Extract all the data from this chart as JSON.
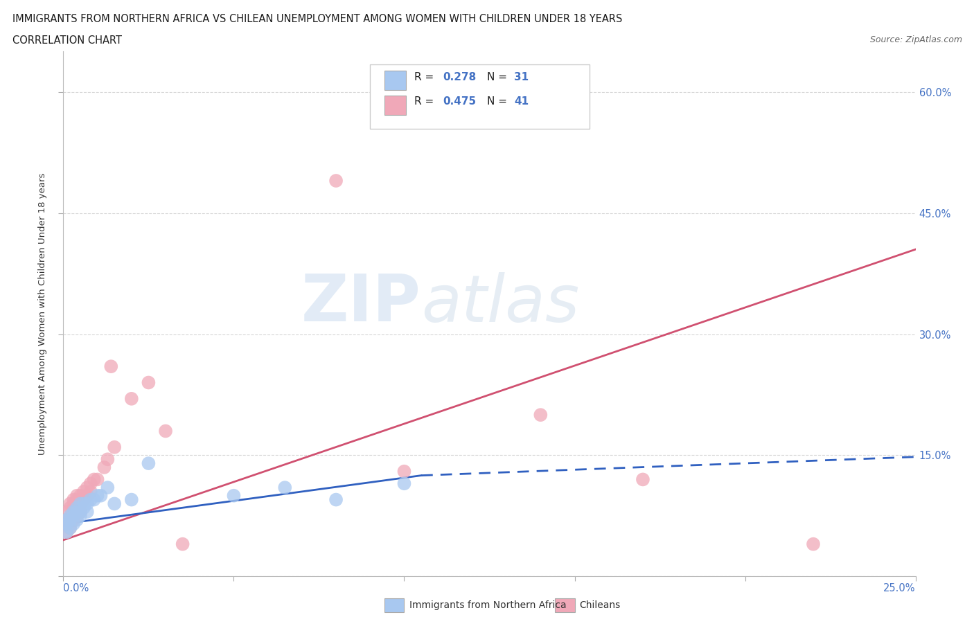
{
  "title": "IMMIGRANTS FROM NORTHERN AFRICA VS CHILEAN UNEMPLOYMENT AMONG WOMEN WITH CHILDREN UNDER 18 YEARS",
  "subtitle": "CORRELATION CHART",
  "source": "Source: ZipAtlas.com",
  "legend_label_blue": "Immigrants from Northern Africa",
  "legend_label_pink": "Chileans",
  "blue_color": "#a8c8f0",
  "pink_color": "#f0a8b8",
  "blue_line_color": "#3060c0",
  "pink_line_color": "#d05070",
  "watermark_zip": "ZIP",
  "watermark_atlas": "atlas",
  "blue_scatter_x": [
    0.001,
    0.001,
    0.001,
    0.002,
    0.002,
    0.002,
    0.003,
    0.003,
    0.003,
    0.004,
    0.004,
    0.004,
    0.005,
    0.005,
    0.005,
    0.006,
    0.006,
    0.007,
    0.007,
    0.008,
    0.009,
    0.01,
    0.011,
    0.013,
    0.015,
    0.02,
    0.025,
    0.05,
    0.065,
    0.08,
    0.1
  ],
  "blue_scatter_y": [
    0.055,
    0.065,
    0.07,
    0.06,
    0.07,
    0.075,
    0.065,
    0.075,
    0.08,
    0.07,
    0.08,
    0.085,
    0.075,
    0.08,
    0.09,
    0.085,
    0.09,
    0.08,
    0.09,
    0.095,
    0.095,
    0.1,
    0.1,
    0.11,
    0.09,
    0.095,
    0.14,
    0.1,
    0.11,
    0.095,
    0.115
  ],
  "pink_scatter_x": [
    0.001,
    0.001,
    0.001,
    0.001,
    0.002,
    0.002,
    0.002,
    0.002,
    0.002,
    0.003,
    0.003,
    0.003,
    0.003,
    0.004,
    0.004,
    0.004,
    0.004,
    0.005,
    0.005,
    0.005,
    0.006,
    0.006,
    0.007,
    0.007,
    0.008,
    0.008,
    0.009,
    0.01,
    0.012,
    0.013,
    0.014,
    0.015,
    0.02,
    0.025,
    0.03,
    0.035,
    0.08,
    0.1,
    0.14,
    0.17,
    0.22
  ],
  "pink_scatter_y": [
    0.055,
    0.065,
    0.07,
    0.08,
    0.06,
    0.065,
    0.07,
    0.085,
    0.09,
    0.07,
    0.08,
    0.09,
    0.095,
    0.075,
    0.085,
    0.095,
    0.1,
    0.08,
    0.09,
    0.1,
    0.095,
    0.105,
    0.1,
    0.11,
    0.105,
    0.115,
    0.12,
    0.12,
    0.135,
    0.145,
    0.26,
    0.16,
    0.22,
    0.24,
    0.18,
    0.04,
    0.49,
    0.13,
    0.2,
    0.12,
    0.04
  ],
  "pink_trend_x0": 0.0,
  "pink_trend_y0": 0.045,
  "pink_trend_x1": 0.25,
  "pink_trend_y1": 0.405,
  "blue_trend_solid_x0": 0.0,
  "blue_trend_solid_y0": 0.065,
  "blue_trend_solid_x1": 0.105,
  "blue_trend_solid_y1": 0.125,
  "blue_trend_dash_x0": 0.105,
  "blue_trend_dash_y0": 0.125,
  "blue_trend_dash_x1": 0.25,
  "blue_trend_dash_y1": 0.148,
  "xlim": [
    0.0,
    0.25
  ],
  "ylim": [
    0.0,
    0.65
  ],
  "x_ticks": [
    0.0,
    0.05,
    0.1,
    0.15,
    0.2,
    0.25
  ],
  "y_ticks": [
    0.0,
    0.15,
    0.3,
    0.45,
    0.6
  ],
  "grid_color": "#cccccc",
  "legend_r_blue": "0.278",
  "legend_n_blue": "31",
  "legend_r_pink": "0.475",
  "legend_n_pink": "41"
}
